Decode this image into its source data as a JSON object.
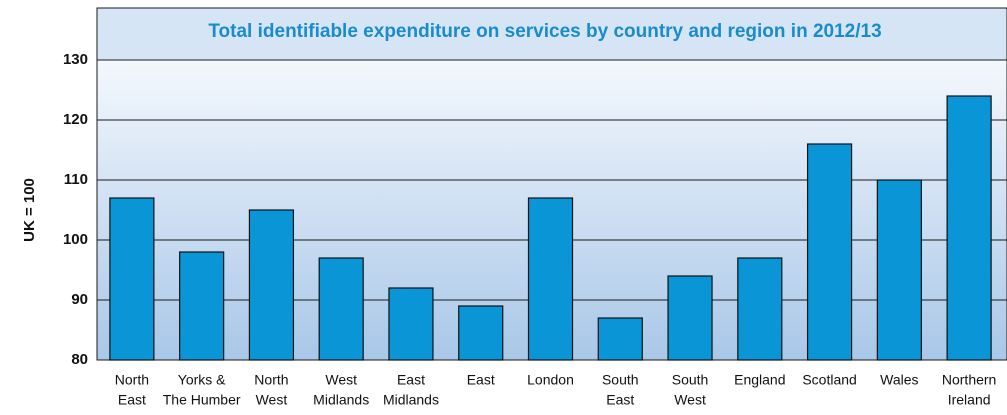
{
  "chart_data": {
    "type": "bar",
    "title": "Total identifiable expenditure on services by country and region in 2012/13",
    "y_label": "UK = 100",
    "categories": [
      [
        "North",
        "East"
      ],
      [
        "Yorks &",
        "The Humber"
      ],
      [
        "North",
        "West"
      ],
      [
        "West",
        "Midlands"
      ],
      [
        "East",
        "Midlands"
      ],
      [
        "East"
      ],
      [
        "London"
      ],
      [
        "South",
        "East"
      ],
      [
        "South",
        "West"
      ],
      [
        "England"
      ],
      [
        "Scotland"
      ],
      [
        "Wales"
      ],
      [
        "Northern",
        "Ireland"
      ]
    ],
    "values": [
      107,
      98,
      105,
      97,
      92,
      89,
      107,
      87,
      94,
      97,
      116,
      110,
      124
    ],
    "color": "#0a96d6",
    "ylim": [
      80,
      130
    ],
    "yticks": [
      80,
      90,
      100,
      110,
      120,
      130
    ],
    "grid": true
  }
}
